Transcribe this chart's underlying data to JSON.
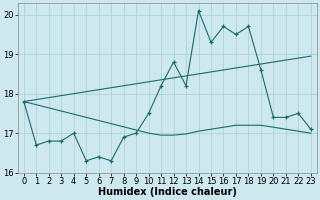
{
  "xlabel": "Humidex (Indice chaleur)",
  "bg_color": "#cde8ee",
  "grid_color": "#a8cdd4",
  "line_color": "#1c6b6b",
  "x_values": [
    0,
    1,
    2,
    3,
    4,
    5,
    6,
    7,
    8,
    9,
    10,
    11,
    12,
    13,
    14,
    15,
    16,
    17,
    18,
    19,
    20,
    21,
    22,
    23
  ],
  "y_main": [
    17.8,
    16.7,
    16.8,
    16.8,
    17.0,
    16.3,
    16.4,
    16.3,
    16.9,
    17.0,
    17.5,
    18.2,
    18.8,
    18.2,
    20.1,
    19.3,
    19.7,
    19.5,
    19.7,
    18.6,
    17.4,
    17.4,
    17.5,
    17.1
  ],
  "y_line1": [
    17.8,
    17.85,
    17.9,
    17.95,
    18.0,
    18.05,
    18.1,
    18.15,
    18.2,
    18.25,
    18.3,
    18.35,
    18.4,
    18.45,
    18.5,
    18.55,
    18.6,
    18.65,
    18.7,
    18.75,
    18.8,
    18.85,
    18.9,
    18.95
  ],
  "y_line2": [
    17.8,
    17.72,
    17.64,
    17.56,
    17.48,
    17.4,
    17.32,
    17.24,
    17.16,
    17.08,
    17.0,
    16.95,
    16.95,
    16.98,
    17.05,
    17.1,
    17.15,
    17.2,
    17.2,
    17.2,
    17.15,
    17.1,
    17.05,
    17.0
  ],
  "ylim": [
    16.0,
    20.3
  ],
  "xlim": [
    -0.5,
    23.5
  ],
  "yticks": [
    16,
    17,
    18,
    19,
    20
  ],
  "xticks": [
    0,
    1,
    2,
    3,
    4,
    5,
    6,
    7,
    8,
    9,
    10,
    11,
    12,
    13,
    14,
    15,
    16,
    17,
    18,
    19,
    20,
    21,
    22,
    23
  ],
  "tick_fontsize": 6,
  "label_fontsize": 7,
  "figsize": [
    3.2,
    2.0
  ],
  "dpi": 100
}
